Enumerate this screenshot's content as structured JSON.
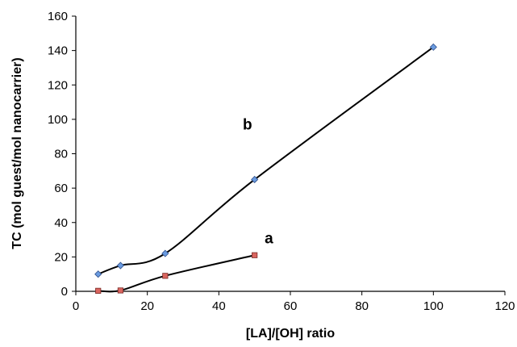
{
  "chart_data": {
    "type": "scatter",
    "title": "",
    "xlabel": "[LA]/[OH] ratio",
    "ylabel": "TC (mol guest/mol nanocarrier)",
    "xlim": [
      0,
      120
    ],
    "ylim": [
      0,
      160
    ],
    "xticks": [
      0,
      20,
      40,
      60,
      80,
      100,
      120
    ],
    "yticks": [
      0,
      20,
      40,
      60,
      80,
      100,
      120,
      140,
      160
    ],
    "grid": false,
    "legend": "none",
    "series": [
      {
        "label": "a",
        "color": "#d9655f",
        "marker": "square",
        "x": [
          6.25,
          12.5,
          25,
          50
        ],
        "y": [
          0.3,
          0.5,
          9,
          21
        ]
      },
      {
        "label": "b",
        "color": "#6a9be0",
        "marker": "diamond",
        "x": [
          6.25,
          12.5,
          25,
          50,
          100
        ],
        "y": [
          10,
          15,
          22,
          65,
          142
        ]
      }
    ],
    "annotations": [
      {
        "text": "b",
        "x": 48,
        "y": 94
      },
      {
        "text": "a",
        "x": 54,
        "y": 28
      }
    ]
  }
}
